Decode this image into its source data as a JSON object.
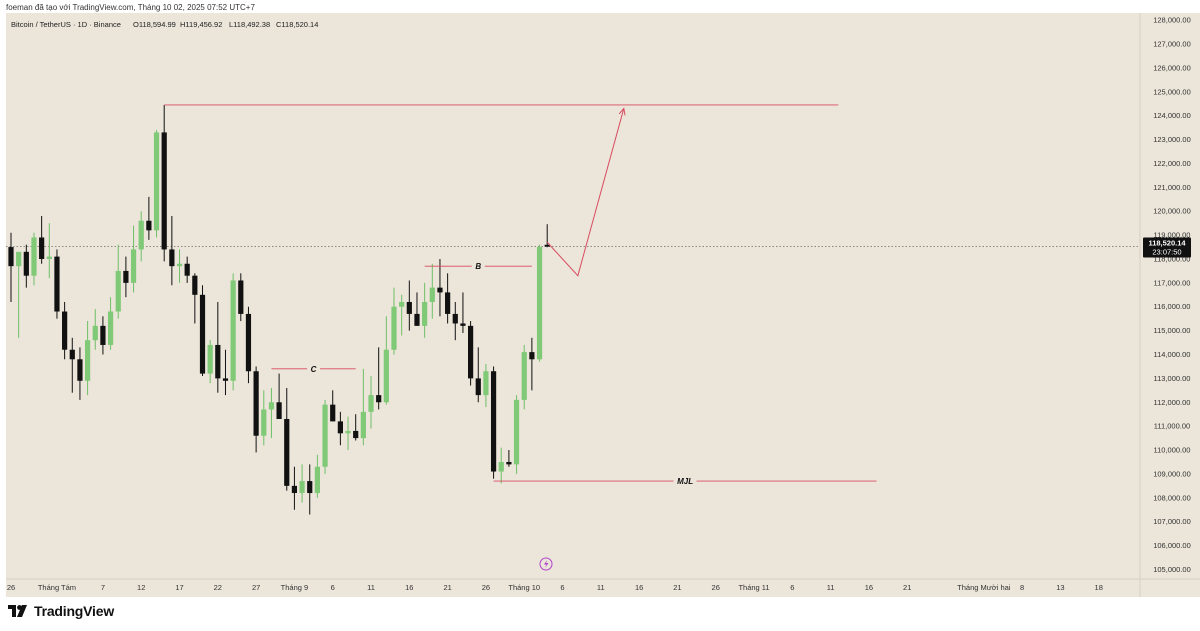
{
  "header": {
    "text": "foeman đã tạo với TradingView.com, Tháng 10 02, 2025 07:52 UTC+7"
  },
  "brand": {
    "name": "TradingView"
  },
  "colors": {
    "background": "#ebe5da",
    "up": "#7fc977",
    "down": "#111111",
    "annotation": "#d94b5e",
    "price_tag": "#111111"
  },
  "chart_data": {
    "type": "candlestick",
    "symbol_line": "Bitcoin / TetherUS · 1D · Binance",
    "ohlc_text": {
      "open": "O118,594.99",
      "high": "H119,456.92",
      "low": "L118,492.38",
      "close": "C118,520.14"
    },
    "ylim": [
      104600,
      128300
    ],
    "y_ticks": [
      105000,
      106000,
      107000,
      108000,
      109000,
      110000,
      111000,
      112000,
      113000,
      114000,
      115000,
      116000,
      117000,
      118000,
      119000,
      120000,
      121000,
      122000,
      123000,
      124000,
      125000,
      126000,
      127000,
      128000
    ],
    "y_tick_labels": [
      "105,000.00",
      "106,000.00",
      "107,000.00",
      "108,000.00",
      "109,000.00",
      "110,000.00",
      "111,000.00",
      "112,000.00",
      "113,000.00",
      "114,000.00",
      "115,000.00",
      "116,000.00",
      "117,000.00",
      "118,000.00",
      "119,000.00",
      "120,000.00",
      "121,000.00",
      "122,000.00",
      "123,000.00",
      "124,000.00",
      "125,000.00",
      "126,000.00",
      "127,000.00",
      "128,000.00"
    ],
    "x_ticks": [
      {
        "i": 0,
        "label": "26"
      },
      {
        "i": 6,
        "label": "Tháng Tám"
      },
      {
        "i": 12,
        "label": "7"
      },
      {
        "i": 17,
        "label": "12"
      },
      {
        "i": 22,
        "label": "17"
      },
      {
        "i": 27,
        "label": "22"
      },
      {
        "i": 32,
        "label": "27"
      },
      {
        "i": 37,
        "label": "Tháng 9"
      },
      {
        "i": 42,
        "label": "6"
      },
      {
        "i": 47,
        "label": "11"
      },
      {
        "i": 52,
        "label": "16"
      },
      {
        "i": 57,
        "label": "21"
      },
      {
        "i": 62,
        "label": "26"
      },
      {
        "i": 67,
        "label": "Tháng 10"
      },
      {
        "i": 72,
        "label": "6"
      },
      {
        "i": 77,
        "label": "11"
      },
      {
        "i": 82,
        "label": "16"
      },
      {
        "i": 87,
        "label": "21"
      },
      {
        "i": 92,
        "label": "26"
      },
      {
        "i": 97,
        "label": "Tháng 11"
      },
      {
        "i": 102,
        "label": "6"
      },
      {
        "i": 107,
        "label": "11"
      },
      {
        "i": 112,
        "label": "16"
      },
      {
        "i": 117,
        "label": "21"
      },
      {
        "i": 127,
        "label": "Tháng Mười hai"
      },
      {
        "i": 132,
        "label": "8"
      },
      {
        "i": 137,
        "label": "13"
      },
      {
        "i": 142,
        "label": "18"
      }
    ],
    "candles": [
      [
        118500,
        119100,
        116200,
        117700
      ],
      [
        117700,
        118200,
        114700,
        118300
      ],
      [
        118300,
        118600,
        116800,
        117300
      ],
      [
        117300,
        119100,
        116900,
        118900
      ],
      [
        118900,
        119800,
        117800,
        118000
      ],
      [
        118000,
        119500,
        117200,
        118100
      ],
      [
        118100,
        118400,
        115500,
        115800
      ],
      [
        115800,
        116200,
        113800,
        114200
      ],
      [
        114200,
        114700,
        112400,
        113800
      ],
      [
        113800,
        114300,
        112100,
        112900
      ],
      [
        112900,
        115400,
        112300,
        114600
      ],
      [
        114600,
        115900,
        114200,
        115200
      ],
      [
        115200,
        115600,
        114000,
        114400
      ],
      [
        114400,
        116400,
        114200,
        115800
      ],
      [
        115800,
        118600,
        115500,
        117500
      ],
      [
        117500,
        118100,
        116400,
        117000
      ],
      [
        117000,
        119400,
        116600,
        118400
      ],
      [
        118400,
        120000,
        117900,
        119600
      ],
      [
        119600,
        120600,
        118800,
        119200
      ],
      [
        119200,
        123400,
        118900,
        123300
      ],
      [
        123300,
        124450,
        117900,
        118400
      ],
      [
        118400,
        119800,
        116900,
        117700
      ],
      [
        117700,
        118400,
        117000,
        117800
      ],
      [
        117800,
        118100,
        117000,
        117300
      ],
      [
        117300,
        117400,
        115300,
        116500
      ],
      [
        116500,
        116900,
        113100,
        113200
      ],
      [
        113200,
        114600,
        112800,
        114400
      ],
      [
        114400,
        116200,
        112400,
        113000
      ],
      [
        113000,
        114200,
        112300,
        112900
      ],
      [
        112900,
        117400,
        112500,
        117100
      ],
      [
        117100,
        117400,
        115400,
        115700
      ],
      [
        115700,
        116000,
        112800,
        113300
      ],
      [
        113300,
        113500,
        109900,
        110600
      ],
      [
        110600,
        112500,
        110200,
        111700
      ],
      [
        111700,
        112600,
        110500,
        112000
      ],
      [
        112000,
        113200,
        111500,
        111300
      ],
      [
        111300,
        112600,
        108300,
        108500
      ],
      [
        108500,
        109300,
        107500,
        108200
      ],
      [
        108200,
        109400,
        107800,
        108700
      ],
      [
        108700,
        109400,
        107300,
        108200
      ],
      [
        108200,
        109800,
        108000,
        109300
      ],
      [
        109300,
        112100,
        109000,
        111900
      ],
      [
        111900,
        112500,
        111200,
        111200
      ],
      [
        111200,
        111600,
        110200,
        110700
      ],
      [
        110700,
        111400,
        110000,
        110800
      ],
      [
        110800,
        111500,
        110400,
        110500
      ],
      [
        110500,
        113400,
        110200,
        111600
      ],
      [
        111600,
        113100,
        110900,
        112300
      ],
      [
        112300,
        114300,
        111700,
        112000
      ],
      [
        112000,
        115600,
        111900,
        114200
      ],
      [
        114200,
        116800,
        114000,
        116000
      ],
      [
        116000,
        116500,
        114800,
        116200
      ],
      [
        116200,
        117100,
        115000,
        115700
      ],
      [
        115700,
        116600,
        115200,
        115200
      ],
      [
        115200,
        117000,
        114700,
        116200
      ],
      [
        116200,
        117800,
        115500,
        116800
      ],
      [
        116800,
        118000,
        115600,
        116600
      ],
      [
        116600,
        117400,
        115300,
        115700
      ],
      [
        115700,
        116200,
        114600,
        115300
      ],
      [
        115300,
        116600,
        114900,
        115200
      ],
      [
        115200,
        115400,
        112700,
        113000
      ],
      [
        113000,
        114300,
        112000,
        112300
      ],
      [
        112300,
        113600,
        111800,
        113300
      ],
      [
        113300,
        113500,
        108800,
        109100
      ],
      [
        109100,
        110100,
        108600,
        109500
      ],
      [
        109500,
        110000,
        109300,
        109400
      ],
      [
        109400,
        112300,
        109000,
        112100
      ],
      [
        112100,
        114400,
        111700,
        114100
      ],
      [
        114100,
        114700,
        112500,
        113800
      ],
      [
        113800,
        118600,
        113700,
        118500
      ],
      [
        118594.99,
        119456.92,
        118492.38,
        118520.14
      ]
    ],
    "last_price_label": "118,520.14",
    "countdown_label": "23:07:50",
    "annotations": [
      {
        "type": "hline",
        "name": "top-high",
        "price": 124450,
        "from": 20,
        "to": 108,
        "label": ""
      },
      {
        "type": "hline",
        "name": "level-b",
        "price": 117700,
        "from": 54,
        "to": 68,
        "label": "B"
      },
      {
        "type": "hline",
        "name": "level-c",
        "price": 113400,
        "from": 34,
        "to": 45,
        "label": "C"
      },
      {
        "type": "hline",
        "name": "level-mjl",
        "price": 108700,
        "from": 63,
        "to": 113,
        "label": "MJL"
      },
      {
        "type": "path",
        "name": "projection",
        "points": [
          [
            70,
            118700
          ],
          [
            74,
            117300
          ],
          [
            80,
            124300
          ]
        ]
      }
    ]
  }
}
